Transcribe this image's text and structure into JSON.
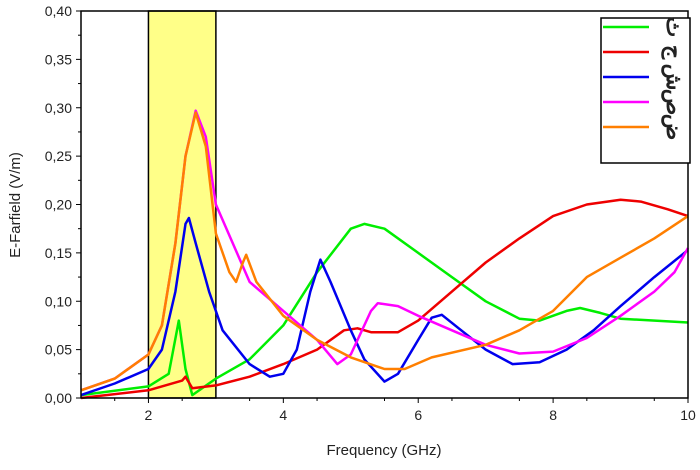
{
  "chart_data": {
    "type": "line",
    "title": "",
    "xlabel": "Frequency (GHz)",
    "ylabel": "E-Farfield (V/m)",
    "xlim": [
      1,
      10
    ],
    "ylim": [
      0,
      0.4
    ],
    "x_ticks": [
      2,
      4,
      6,
      8,
      10
    ],
    "x_tick_labels": [
      "2",
      "4",
      "6",
      "8",
      "10"
    ],
    "y_ticks": [
      0,
      0.05,
      0.1,
      0.15,
      0.2,
      0.25,
      0.3,
      0.35,
      0.4
    ],
    "y_tick_labels": [
      "0,00",
      "0,05",
      "0,10",
      "0,15",
      "0,20",
      "0,25",
      "0,30",
      "0,35",
      "0,40"
    ],
    "grid": false,
    "legend_position": "top-right",
    "highlight_band": {
      "x": [
        2,
        3
      ],
      "color": "#ffff88"
    },
    "series": [
      {
        "name": "ث",
        "color": "#00ee00",
        "x": [
          1,
          2,
          2.3,
          2.45,
          2.55,
          2.65,
          3,
          3.5,
          4,
          4.5,
          5,
          5.2,
          5.5,
          6,
          6.5,
          7,
          7.5,
          7.8,
          8.2,
          8.4,
          8.7,
          9,
          10
        ],
        "y": [
          0.003,
          0.012,
          0.025,
          0.08,
          0.03,
          0.003,
          0.02,
          0.04,
          0.075,
          0.13,
          0.175,
          0.18,
          0.175,
          0.15,
          0.125,
          0.1,
          0.082,
          0.08,
          0.09,
          0.093,
          0.088,
          0.082,
          0.078
        ]
      },
      {
        "name": "ج",
        "color": "#ee0000",
        "x": [
          1,
          2,
          2.5,
          2.55,
          2.65,
          3,
          3.5,
          4,
          4.5,
          4.9,
          5.1,
          5.3,
          5.7,
          6,
          6.5,
          7,
          7.5,
          8,
          8.5,
          9,
          9.3,
          9.7,
          10
        ],
        "y": [
          0.0,
          0.008,
          0.018,
          0.022,
          0.01,
          0.013,
          0.022,
          0.035,
          0.05,
          0.07,
          0.072,
          0.068,
          0.068,
          0.08,
          0.11,
          0.14,
          0.165,
          0.188,
          0.2,
          0.205,
          0.203,
          0.195,
          0.188
        ]
      },
      {
        "name": "ش",
        "color": "#0000ee",
        "x": [
          1,
          1.5,
          2,
          2.2,
          2.4,
          2.55,
          2.6,
          2.7,
          2.9,
          3.1,
          3.5,
          3.8,
          4,
          4.2,
          4.4,
          4.55,
          4.7,
          5,
          5.2,
          5.5,
          5.7,
          6,
          6.2,
          6.35,
          6.6,
          7,
          7.4,
          7.8,
          8.2,
          8.6,
          9,
          9.5,
          10
        ],
        "y": [
          0.003,
          0.015,
          0.03,
          0.05,
          0.11,
          0.18,
          0.186,
          0.16,
          0.11,
          0.07,
          0.035,
          0.022,
          0.025,
          0.05,
          0.11,
          0.143,
          0.12,
          0.07,
          0.04,
          0.017,
          0.025,
          0.06,
          0.083,
          0.086,
          0.072,
          0.05,
          0.035,
          0.037,
          0.05,
          0.07,
          0.095,
          0.125,
          0.153
        ]
      },
      {
        "name": "ص",
        "color": "#ff00ff",
        "x": [
          1,
          1.5,
          2,
          2.2,
          2.4,
          2.55,
          2.7,
          2.85,
          3,
          3.5,
          4,
          4.5,
          4.8,
          5,
          5.3,
          5.4,
          5.7,
          6,
          6.5,
          7,
          7.5,
          8,
          8.5,
          9,
          9.5,
          9.8,
          10
        ],
        "y": [
          0.008,
          0.02,
          0.045,
          0.075,
          0.16,
          0.25,
          0.297,
          0.27,
          0.2,
          0.12,
          0.09,
          0.06,
          0.035,
          0.045,
          0.09,
          0.098,
          0.095,
          0.085,
          0.07,
          0.055,
          0.046,
          0.048,
          0.062,
          0.085,
          0.11,
          0.13,
          0.155
        ]
      },
      {
        "name": "ض",
        "color": "#ff7f00",
        "x": [
          1,
          1.5,
          2,
          2.2,
          2.4,
          2.55,
          2.7,
          2.85,
          3,
          3.2,
          3.3,
          3.4,
          3.45,
          3.6,
          4,
          4.5,
          5,
          5.5,
          5.8,
          6.2,
          7,
          7.5,
          8,
          8.5,
          9,
          9.5,
          10
        ],
        "y": [
          0.008,
          0.02,
          0.045,
          0.075,
          0.16,
          0.25,
          0.295,
          0.26,
          0.17,
          0.13,
          0.12,
          0.14,
          0.148,
          0.12,
          0.085,
          0.06,
          0.042,
          0.03,
          0.03,
          0.042,
          0.055,
          0.07,
          0.09,
          0.125,
          0.145,
          0.165,
          0.188
        ]
      }
    ]
  }
}
